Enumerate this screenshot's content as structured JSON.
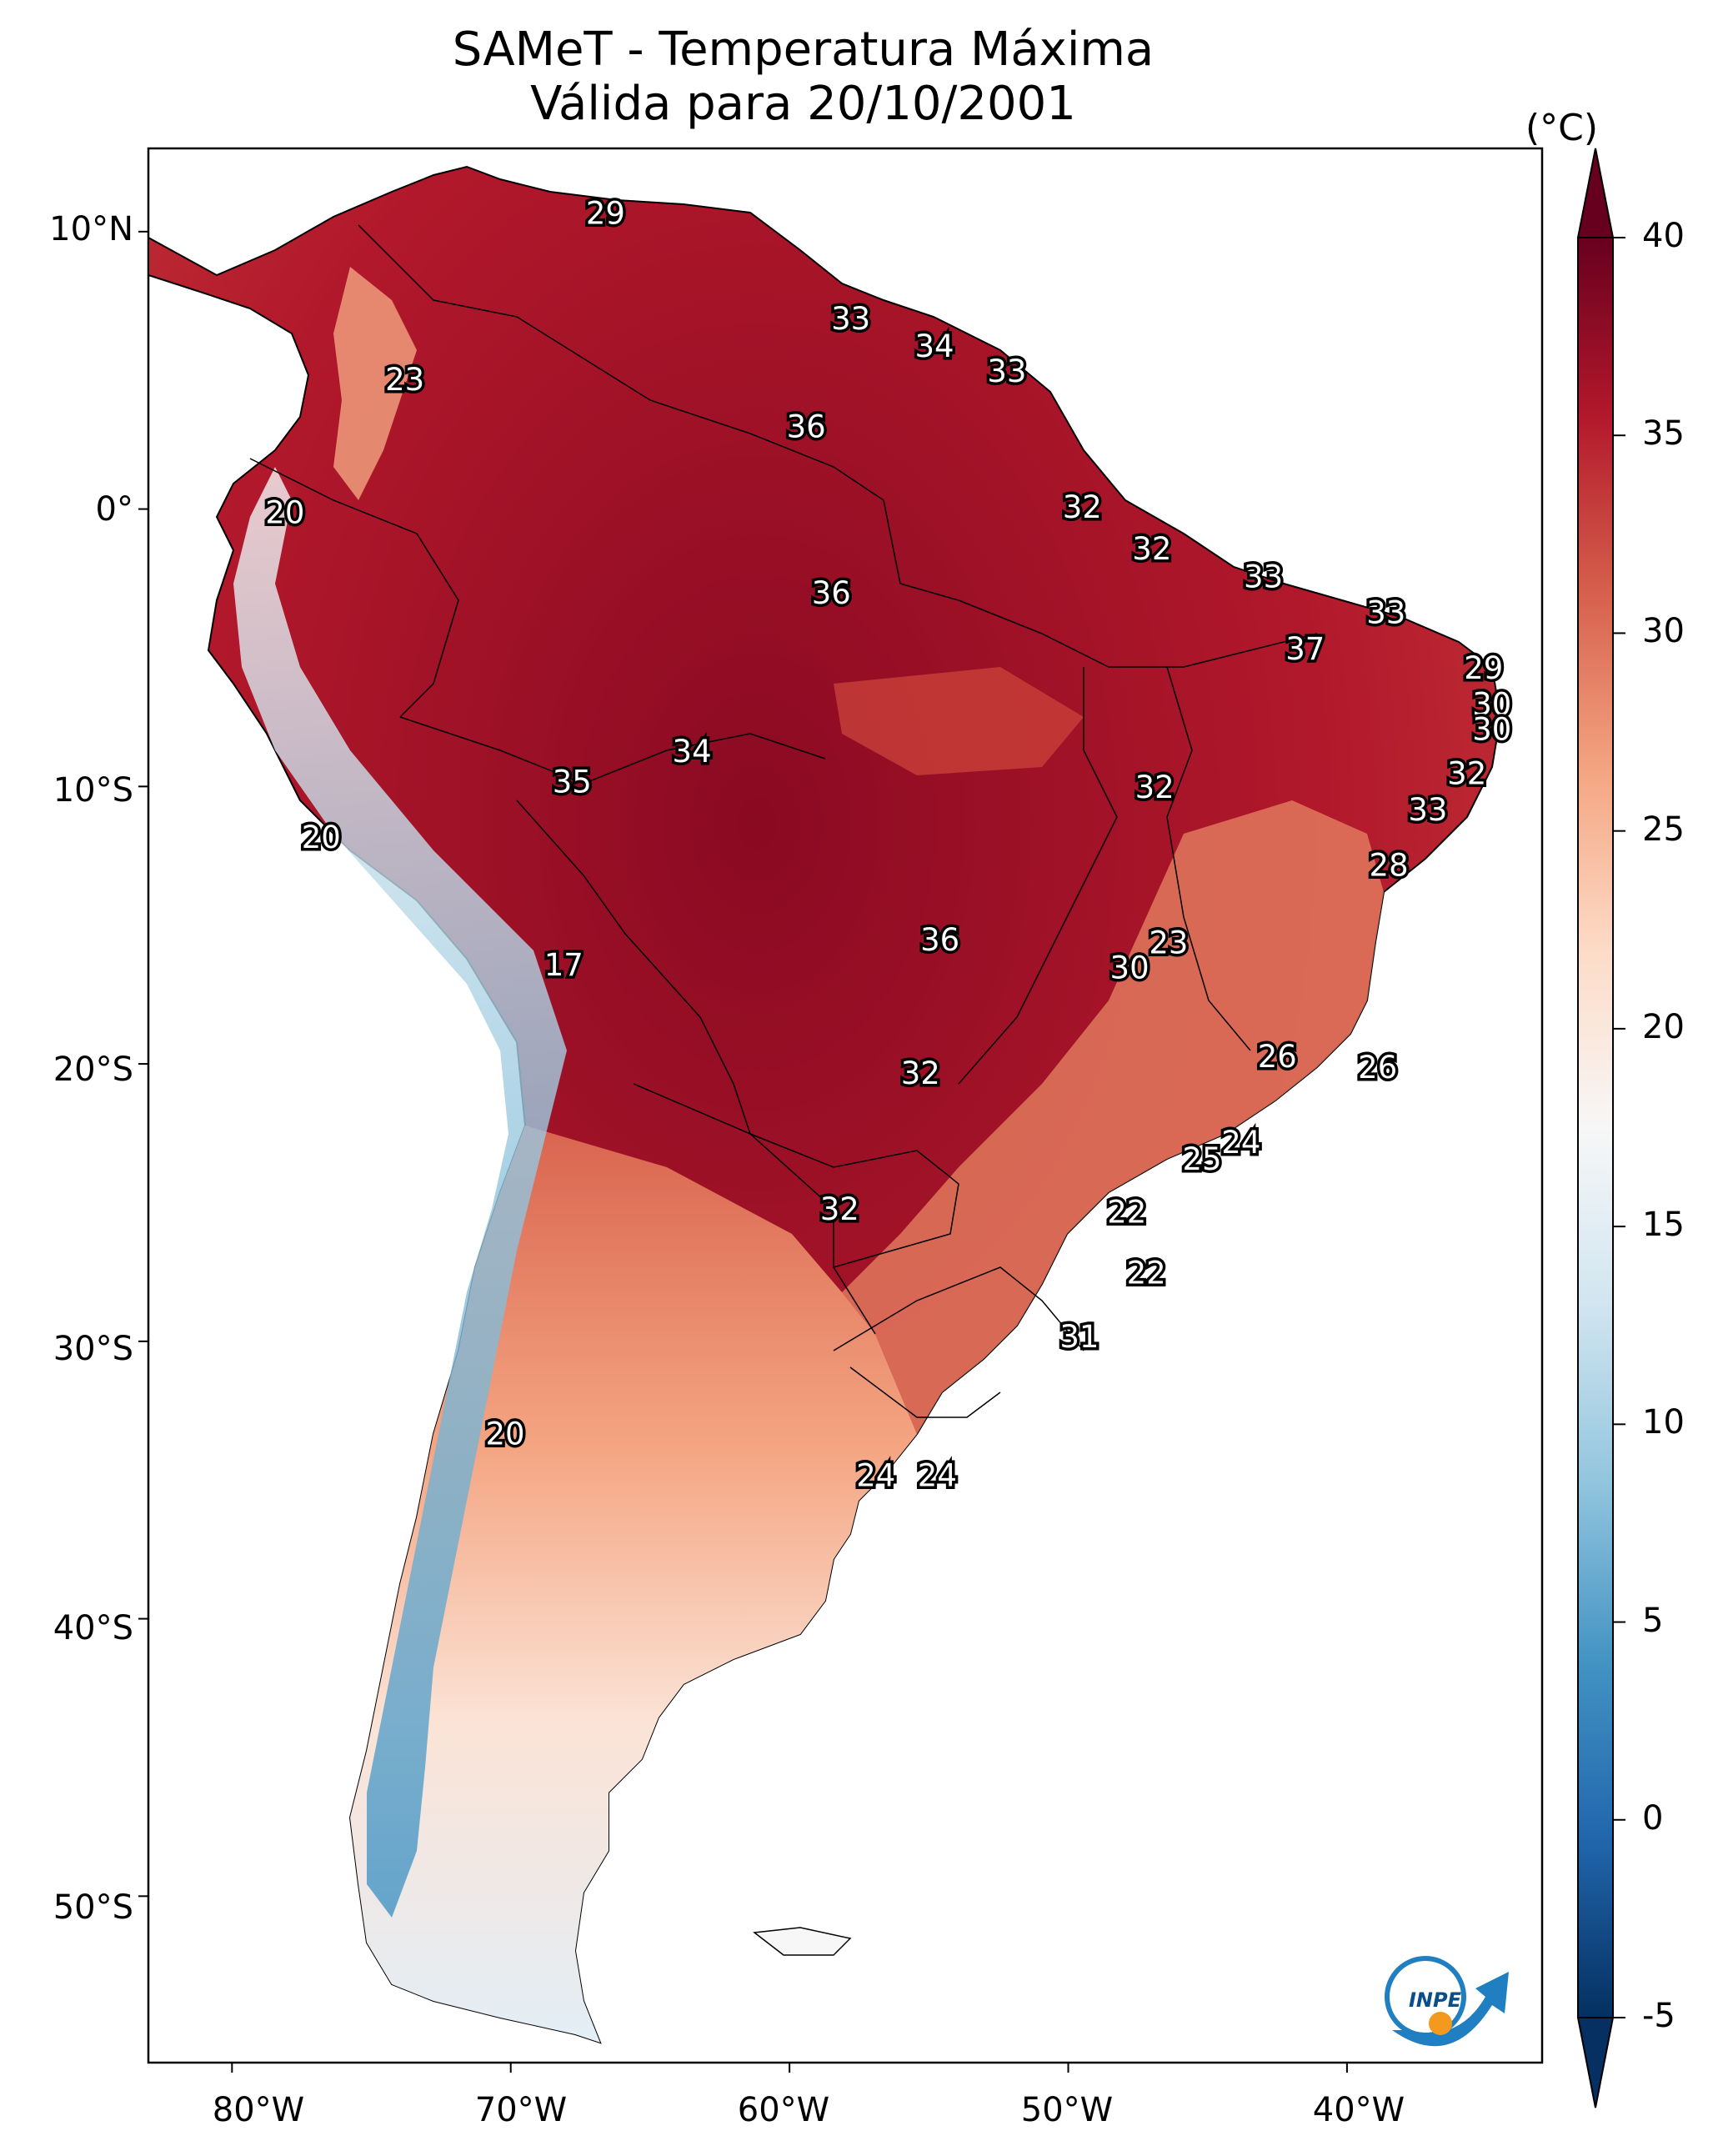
{
  "title": {
    "line1": "SAMeT - Temperatura Máxima",
    "line2": "Válida para 20/10/2001"
  },
  "colorbar": {
    "unit": "(°C)",
    "ticks": [
      "40",
      "35",
      "30",
      "25",
      "20",
      "15",
      "10",
      "5",
      "0",
      "-5"
    ],
    "range": [
      -5,
      40
    ],
    "colors": [
      "#053061",
      "#2166ac",
      "#4393c3",
      "#92c5de",
      "#d1e5f0",
      "#f7f7f7",
      "#fddbc7",
      "#f4a582",
      "#d6604d",
      "#b2182b",
      "#67001f"
    ]
  },
  "axes": {
    "lat_ticks": [
      "10°N",
      "0°",
      "10°S",
      "20°S",
      "30°S",
      "40°S",
      "50°S"
    ],
    "lon_ticks": [
      "80°W",
      "70°W",
      "60°W",
      "50°W",
      "40°W"
    ]
  },
  "station_labels": [
    {
      "text": "29",
      "lon": -66.6,
      "lat": 10.6
    },
    {
      "text": "33",
      "lon": -57.8,
      "lat": 6.8
    },
    {
      "text": "34",
      "lon": -54.8,
      "lat": 5.8
    },
    {
      "text": "33",
      "lon": -52.2,
      "lat": 4.9
    },
    {
      "text": "23",
      "lon": -73.8,
      "lat": 4.6
    },
    {
      "text": "36",
      "lon": -59.4,
      "lat": 2.9
    },
    {
      "text": "32",
      "lon": -49.5,
      "lat": 0.0
    },
    {
      "text": "20",
      "lon": -78.1,
      "lat": -0.2
    },
    {
      "text": "32",
      "lon": -47.0,
      "lat": -1.5
    },
    {
      "text": "33",
      "lon": -43.0,
      "lat": -2.5
    },
    {
      "text": "36",
      "lon": -58.5,
      "lat": -3.1
    },
    {
      "text": "33",
      "lon": -38.6,
      "lat": -3.8
    },
    {
      "text": "37",
      "lon": -41.5,
      "lat": -5.1
    },
    {
      "text": "29",
      "lon": -35.1,
      "lat": -5.8
    },
    {
      "text": "30",
      "lon": -34.8,
      "lat": -7.1
    },
    {
      "text": "30",
      "lon": -34.8,
      "lat": -8.0
    },
    {
      "text": "34",
      "lon": -63.5,
      "lat": -8.8
    },
    {
      "text": "35",
      "lon": -67.8,
      "lat": -9.9
    },
    {
      "text": "32",
      "lon": -35.7,
      "lat": -9.6
    },
    {
      "text": "32",
      "lon": -46.9,
      "lat": -10.1
    },
    {
      "text": "33",
      "lon": -37.1,
      "lat": -10.9
    },
    {
      "text": "20",
      "lon": -76.8,
      "lat": -11.9
    },
    {
      "text": "28",
      "lon": -38.5,
      "lat": -12.9
    },
    {
      "text": "36",
      "lon": -54.6,
      "lat": -15.6
    },
    {
      "text": "23",
      "lon": -46.4,
      "lat": -15.7
    },
    {
      "text": "30",
      "lon": -47.8,
      "lat": -16.6
    },
    {
      "text": "17",
      "lon": -68.1,
      "lat": -16.5
    },
    {
      "text": "26",
      "lon": -42.5,
      "lat": -19.8
    },
    {
      "text": "26",
      "lon": -38.9,
      "lat": -20.2
    },
    {
      "text": "32",
      "lon": -55.3,
      "lat": -20.4
    },
    {
      "text": "24",
      "lon": -43.8,
      "lat": -22.9
    },
    {
      "text": "25",
      "lon": -45.2,
      "lat": -23.5
    },
    {
      "text": "32",
      "lon": -58.2,
      "lat": -25.3
    },
    {
      "text": "22",
      "lon": -47.9,
      "lat": -25.4
    },
    {
      "text": "22",
      "lon": -47.2,
      "lat": -27.6
    },
    {
      "text": "31",
      "lon": -49.6,
      "lat": -29.9
    },
    {
      "text": "20",
      "lon": -70.2,
      "lat": -33.4
    },
    {
      "text": "24",
      "lon": -56.9,
      "lat": -34.9
    },
    {
      "text": "24",
      "lon": -54.7,
      "lat": -34.9
    }
  ],
  "logo": {
    "text": "INPE"
  }
}
